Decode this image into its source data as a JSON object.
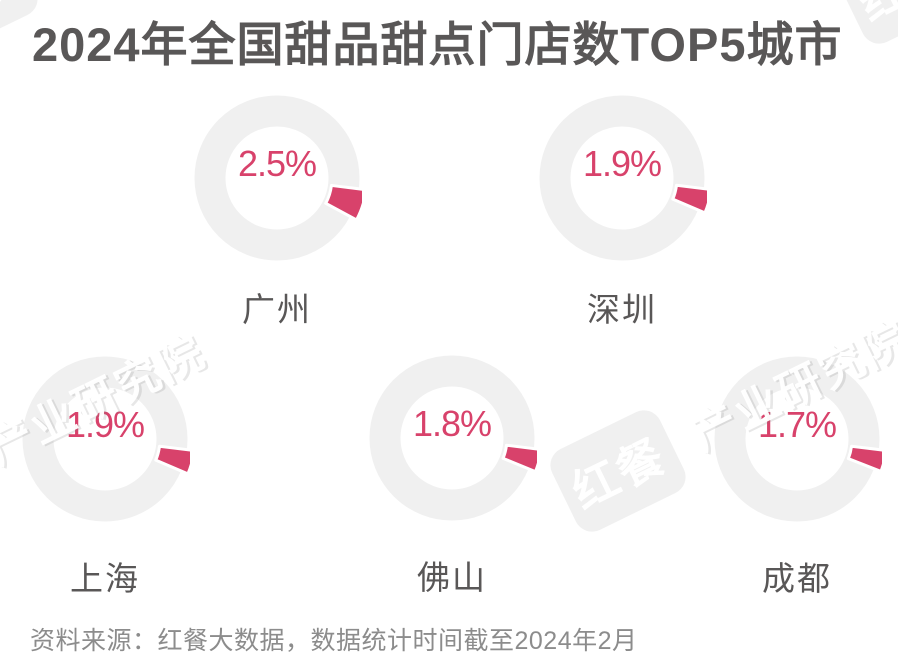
{
  "title": "2024年全国甜品甜点门店数TOP5城市",
  "source_note": "资料来源：红餐大数据，数据统计时间截至2024年2月",
  "watermark": {
    "badge_text": "红餐",
    "brand_text": "产业研究院"
  },
  "colors": {
    "accent": "#d8426b",
    "ring": "#f0f0f0",
    "heading": "#595757",
    "source_text": "#8c8c8c"
  },
  "chart_data": {
    "type": "pie",
    "variant": "donut-small-multiples",
    "title": "2024年全国甜品甜点门店数TOP5城市",
    "unit": "%",
    "categories": [
      "广州",
      "深圳",
      "上海",
      "佛山",
      "成都"
    ],
    "values": [
      2.5,
      1.9,
      1.9,
      1.8,
      1.7
    ],
    "value_labels": [
      "2.5%",
      "1.9%",
      "1.9%",
      "1.8%",
      "1.7%"
    ],
    "legend": "none",
    "grid": "off",
    "note": "资料来源：红餐大数据，数据统计时间截至2024年2月"
  }
}
